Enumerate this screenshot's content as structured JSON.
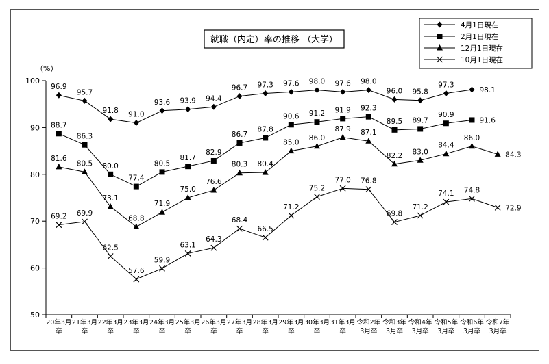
{
  "chart_data": {
    "type": "line",
    "title": "就職（内定）率の推移 （大学）",
    "ylabel": "（%）",
    "ylim": [
      50,
      100
    ],
    "yticks": [
      "50",
      "60",
      "70",
      "80",
      "90",
      "100"
    ],
    "grid": false,
    "legend_position": "top-right",
    "categories": [
      [
        "20年3月",
        "卒"
      ],
      [
        "21年3月",
        "卒"
      ],
      [
        "22年3月",
        "卒"
      ],
      [
        "23年3月",
        "卒"
      ],
      [
        "24年3月",
        "卒"
      ],
      [
        "25年3月",
        "卒"
      ],
      [
        "26年3月",
        "卒"
      ],
      [
        "27年3月",
        "卒"
      ],
      [
        "28年3月",
        "卒"
      ],
      [
        "29年3月",
        "卒"
      ],
      [
        "30年3月",
        "卒"
      ],
      [
        "31年3月",
        "卒"
      ],
      [
        "令和2年",
        "3月卒"
      ],
      [
        "令和3年",
        "3月卒"
      ],
      [
        "令和4年",
        "3月卒"
      ],
      [
        "令和5年",
        "3月卒"
      ],
      [
        "令和6年",
        "3月卒"
      ],
      [
        "令和7年",
        "3月卒"
      ]
    ],
    "series": [
      {
        "name": "4月1日現在",
        "marker": "diamond",
        "values": [
          96.9,
          95.7,
          91.8,
          91.0,
          93.6,
          93.9,
          94.4,
          96.7,
          97.3,
          97.6,
          98.0,
          97.6,
          98.0,
          96.0,
          95.8,
          97.3,
          98.1,
          null
        ],
        "labels": [
          "96.9",
          "95.7",
          "91.8",
          "91.0",
          "93.6",
          "93.9",
          "94.4",
          "96.7",
          "97.3",
          "97.6",
          "98.0",
          "97.6",
          "98.0",
          "96.0",
          "95.8",
          "97.3",
          "98.1",
          ""
        ]
      },
      {
        "name": "2月1日現在",
        "marker": "square",
        "values": [
          88.7,
          86.3,
          80.0,
          77.4,
          80.5,
          81.7,
          82.9,
          86.7,
          87.8,
          90.6,
          91.2,
          91.9,
          92.3,
          89.5,
          89.7,
          90.9,
          91.6,
          null
        ],
        "labels": [
          "88.7",
          "86.3",
          "80.0",
          "77.4",
          "80.5",
          "81.7",
          "82.9",
          "86.7",
          "87.8",
          "90.6",
          "91.2",
          "91.9",
          "92.3",
          "89.5",
          "89.7",
          "90.9",
          "91.6",
          ""
        ]
      },
      {
        "name": "12月1日現在",
        "marker": "triangle",
        "values": [
          81.6,
          80.5,
          73.1,
          68.8,
          71.9,
          75.0,
          76.6,
          80.3,
          80.4,
          85.0,
          86.0,
          87.9,
          87.1,
          82.2,
          83.0,
          84.4,
          86.0,
          84.3
        ],
        "labels": [
          "81.6",
          "80.5",
          "73.1",
          "68.8",
          "71.9",
          "75.0",
          "76.6",
          "80.3",
          "80.4",
          "85.0",
          "86.0",
          "87.9",
          "87.1",
          "82.2",
          "83.0",
          "84.4",
          "86.0",
          "84.3"
        ]
      },
      {
        "name": "10月1日現在",
        "marker": "x",
        "values": [
          69.2,
          69.9,
          62.5,
          57.6,
          59.9,
          63.1,
          64.3,
          68.4,
          66.5,
          71.2,
          75.2,
          77.0,
          76.8,
          69.8,
          71.2,
          74.1,
          74.8,
          72.9
        ],
        "labels": [
          "69.2",
          "69.9",
          "62.5",
          "57.6",
          "59.9",
          "63.1",
          "64.3",
          "68.4",
          "66.5",
          "71.2",
          "75.2",
          "77.0",
          "76.8",
          "69.8",
          "71.2",
          "74.1",
          "74.8",
          "72.9"
        ]
      }
    ]
  }
}
